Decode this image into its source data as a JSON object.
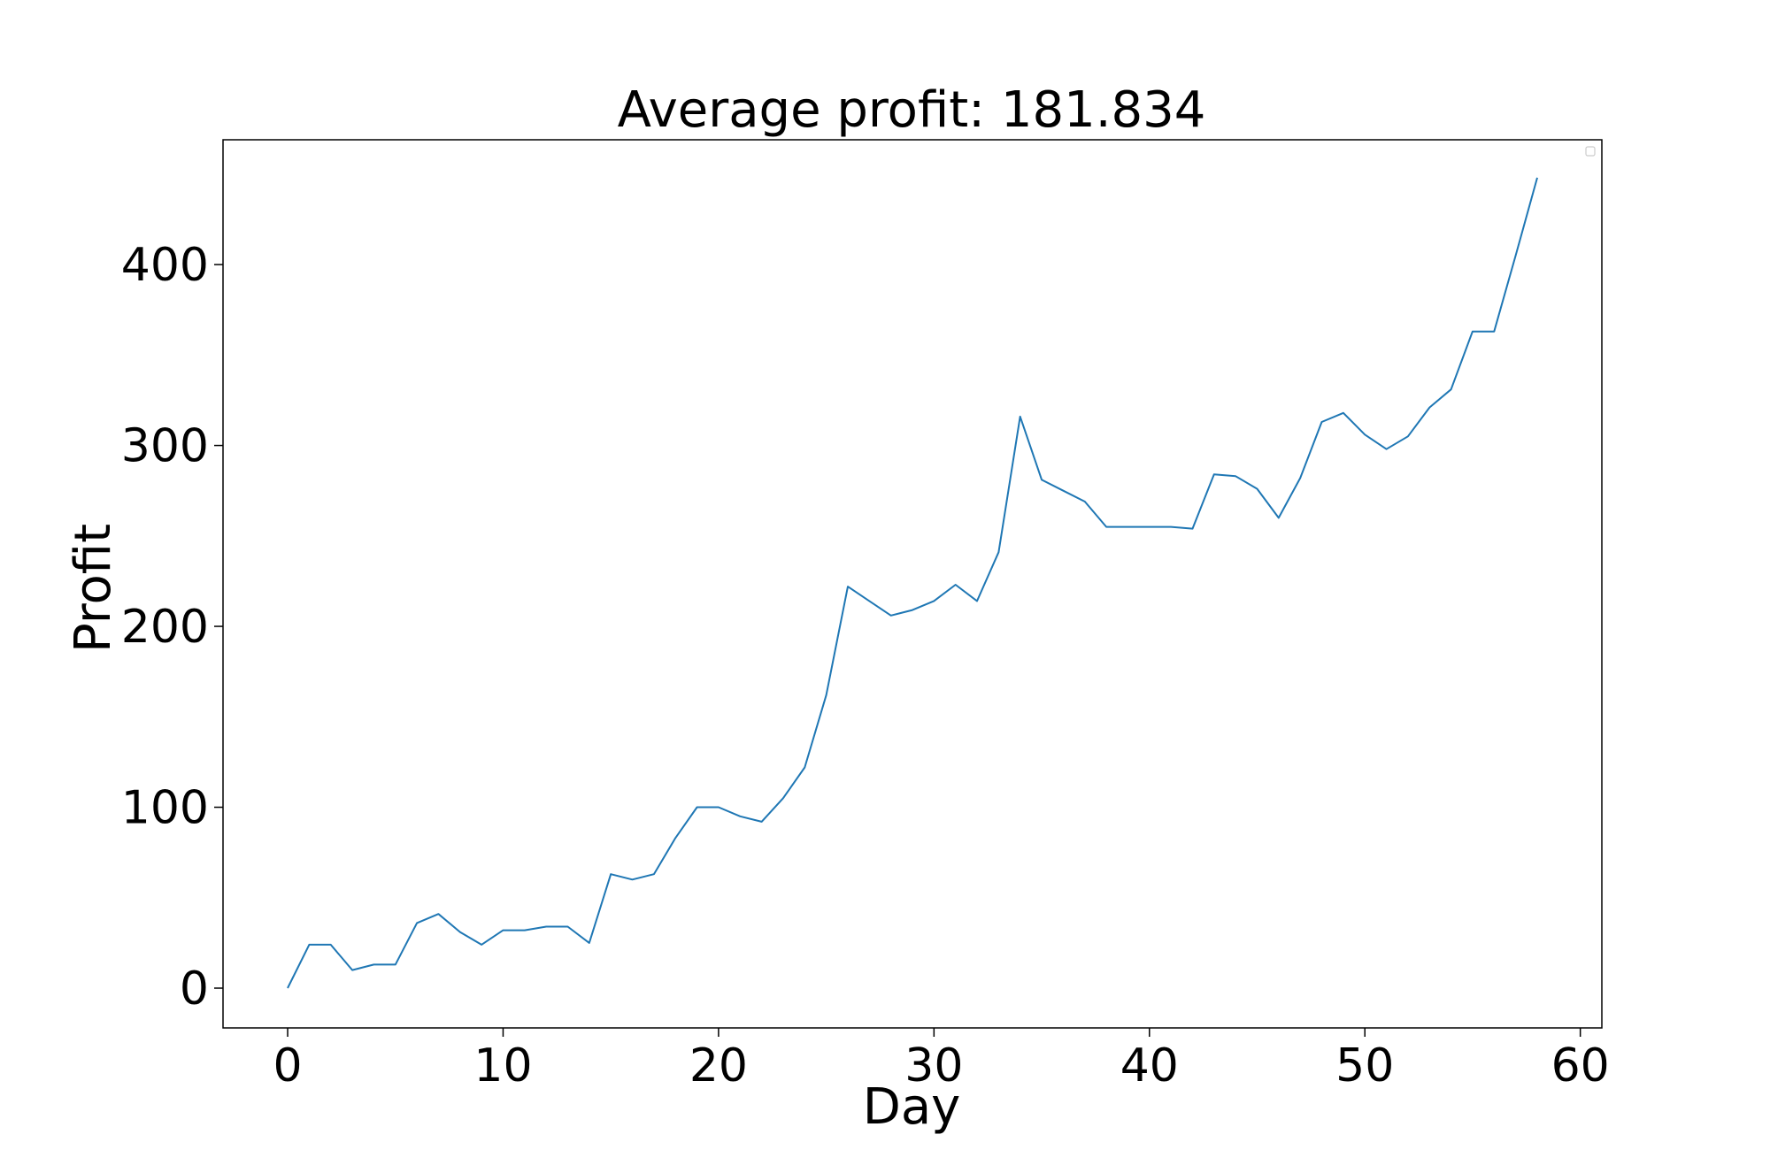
{
  "chart_data": {
    "type": "line",
    "title": "Average profit: 181.834",
    "xlabel": "Day",
    "ylabel": "Profit",
    "xlim": [
      -3,
      61
    ],
    "ylim": [
      -22,
      469
    ],
    "xticks": [
      0,
      10,
      20,
      30,
      40,
      50,
      60
    ],
    "xtick_labels": [
      "0",
      "10",
      "20",
      "30",
      "40",
      "50",
      "60"
    ],
    "yticks": [
      0,
      100,
      200,
      300,
      400
    ],
    "ytick_labels": [
      "0",
      "100",
      "200",
      "300",
      "400"
    ],
    "grid": false,
    "legend": {
      "placement": "top-right",
      "entries": []
    },
    "series": [
      {
        "color": "#1f77b4",
        "x": [
          0,
          1,
          2,
          3,
          4,
          5,
          6,
          7,
          8,
          9,
          10,
          11,
          12,
          13,
          14,
          15,
          16,
          17,
          18,
          19,
          20,
          21,
          22,
          23,
          24,
          25,
          26,
          27,
          28,
          29,
          30,
          31,
          32,
          33,
          34,
          35,
          36,
          37,
          38,
          39,
          40,
          41,
          42,
          43,
          44,
          45,
          46,
          47,
          48,
          49,
          50,
          51,
          52,
          53,
          54,
          55,
          56,
          57,
          58
        ],
        "values": [
          0,
          24,
          24,
          10,
          13,
          13,
          36,
          41,
          31,
          24,
          32,
          32,
          34,
          34,
          25,
          63,
          60,
          63,
          83,
          100,
          100,
          95,
          92,
          105,
          122,
          162,
          222,
          214,
          206,
          209,
          214,
          223,
          214,
          241,
          316,
          281,
          275,
          269,
          255,
          255,
          255,
          255,
          254,
          284,
          283,
          276,
          260,
          282,
          313,
          318,
          306,
          298,
          305,
          321,
          331,
          363,
          363,
          405,
          448
        ]
      }
    ]
  }
}
